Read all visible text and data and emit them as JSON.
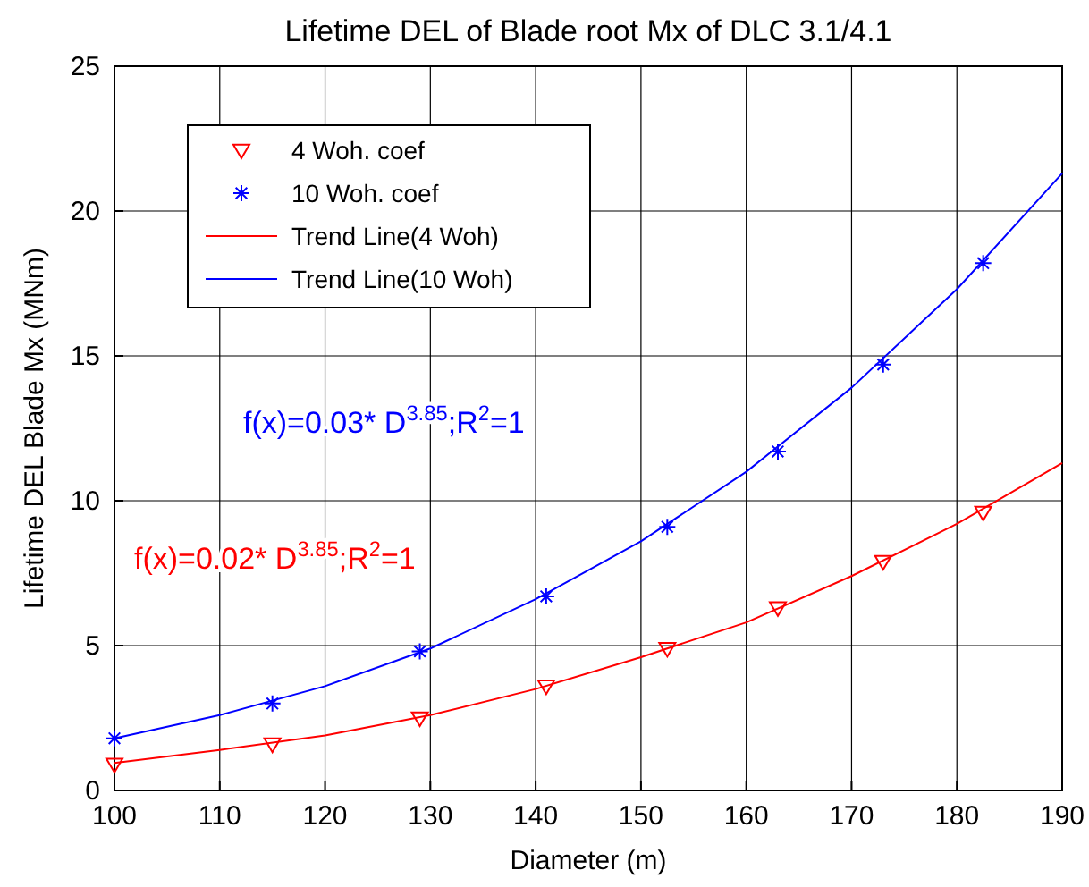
{
  "chart_data": {
    "type": "scatter",
    "title": "Lifetime DEL of Blade root Mx of DLC 3.1/4.1",
    "xlabel": "Diameter (m)",
    "ylabel": "Lifetime DEL Blade Mx (MNm)",
    "x": [
      100,
      115,
      129,
      141,
      152.5,
      163,
      173,
      182.5
    ],
    "series": [
      {
        "name": "4 Woh. coef",
        "color": "#ff0000",
        "marker": "triangle",
        "values": [
          0.9,
          1.6,
          2.5,
          3.6,
          4.9,
          6.3,
          7.9,
          9.6
        ]
      },
      {
        "name": "10 Woh. coef",
        "color": "#0000ff",
        "marker": "cross",
        "values": [
          1.8,
          3.0,
          4.8,
          6.7,
          9.1,
          11.7,
          14.7,
          18.2
        ]
      },
      {
        "name": "Trend Line(4 Woh)",
        "type": "line",
        "color": "#ff0000",
        "marker": "none",
        "x": [
          100,
          110,
          120,
          130,
          140,
          150,
          160,
          170,
          180,
          190
        ],
        "values": [
          0.95,
          1.4,
          1.9,
          2.6,
          3.5,
          4.6,
          5.8,
          7.4,
          9.2,
          11.3
        ]
      },
      {
        "name": "Trend Line(10 Woh)",
        "type": "line",
        "color": "#0000ff",
        "marker": "none",
        "x": [
          100,
          110,
          120,
          130,
          140,
          150,
          160,
          170,
          180,
          190
        ],
        "values": [
          1.8,
          2.6,
          3.6,
          4.9,
          6.6,
          8.6,
          11.0,
          13.9,
          17.3,
          21.3
        ]
      }
    ],
    "annotations": [
      "f(x)=0.03* D$^{3.85}$;R$^{2}$=1",
      "f(x)=0.02* D$^{3.85}$;R$^{2}$=1"
    ],
    "xlim": [
      100,
      190
    ],
    "xticks": [
      100,
      110,
      120,
      130,
      140,
      150,
      160,
      170,
      180,
      190
    ],
    "ylim": [
      0,
      25
    ],
    "yticks": [
      0,
      5,
      10,
      15,
      20,
      25
    ],
    "grid": true,
    "legend": "top left"
  }
}
